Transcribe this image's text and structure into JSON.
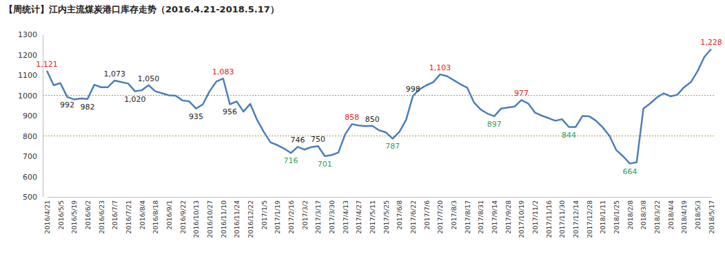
{
  "chart_data": {
    "type": "line",
    "title": "【周统计】江内主流煤炭港口库存走势（2016.4.21-2018.5.17）",
    "categories": [
      "2016/4/21",
      null,
      "2016/5/5",
      null,
      "2016/5/19",
      null,
      "2016/6/2",
      null,
      "2016/6/23",
      null,
      "2016/7/7",
      null,
      "2016/7/21",
      null,
      "2016/8/4",
      null,
      "2016/8/18",
      null,
      "2016/9/1",
      null,
      "2016/9/22",
      null,
      "2016/10/13",
      null,
      "2016/10/27",
      null,
      "2016/11/10",
      null,
      "2016/11/24",
      null,
      "2016/12/22",
      null,
      "2017/1/5",
      null,
      "2017/1/19",
      null,
      "2017/2/16",
      null,
      "2017/3/2",
      null,
      "2017/3/17",
      null,
      "2017/3/30",
      null,
      "2017/4/13",
      null,
      "2017/4/27",
      null,
      "2017/5/11",
      null,
      "2017/5/25",
      null,
      "2017/6/8",
      null,
      "2017/6/22",
      null,
      "2017/7/6",
      null,
      "2017/7/20",
      null,
      "2017/8/3",
      null,
      "2017/8/17",
      null,
      "2017/8/31",
      null,
      "2017/9/14",
      null,
      "2017/9/28",
      null,
      "2017/10/19",
      null,
      "2017/11/2",
      null,
      "2017/11/16",
      null,
      "2017/11/30",
      null,
      "2017/12/14",
      null,
      "2017/12/28",
      null,
      "2018/1/11",
      null,
      "2018/1/25",
      null,
      "2018/2/8",
      null,
      "2018/3/8",
      null,
      "2018/3/22",
      null,
      "2018/4/4",
      null,
      "2018/4/19",
      null,
      "2018/5/3",
      null,
      "2018/5/17"
    ],
    "values": [
      1121,
      1050,
      1060,
      992,
      980,
      985,
      982,
      1052,
      1040,
      1040,
      1073,
      1065,
      1058,
      1020,
      1025,
      1050,
      1020,
      1010,
      1000,
      998,
      975,
      970,
      935,
      955,
      1020,
      1068,
      1083,
      956,
      970,
      920,
      958,
      880,
      820,
      768,
      755,
      738,
      716,
      746,
      733,
      745,
      750,
      701,
      706,
      718,
      808,
      858,
      852,
      848,
      850,
      828,
      818,
      787,
      820,
      880,
      998,
      1030,
      1050,
      1065,
      1103,
      1095,
      1075,
      1055,
      1038,
      965,
      930,
      910,
      897,
      935,
      940,
      945,
      977,
      960,
      915,
      900,
      888,
      875,
      882,
      844,
      844,
      898,
      897,
      875,
      842,
      800,
      730,
      700,
      664,
      670,
      935,
      960,
      990,
      1010,
      995,
      1003,
      1040,
      1065,
      1120,
      1190,
      1228
    ],
    "color": "#4a7ebb",
    "ylim": [
      500,
      1300
    ],
    "yticks": [
      500,
      600,
      700,
      800,
      900,
      1000,
      1100,
      1200,
      1300
    ],
    "grid": false,
    "reference_lines": [
      800,
      1000
    ],
    "annotations": [
      {
        "index": 0,
        "text": "1,121",
        "color": "#e02020"
      },
      {
        "index": 3,
        "text": "992",
        "color": "#222222"
      },
      {
        "index": 6,
        "text": "982",
        "color": "#222222"
      },
      {
        "index": 10,
        "text": "1,073",
        "color": "#222222"
      },
      {
        "index": 13,
        "text": "1,020",
        "color": "#222222"
      },
      {
        "index": 15,
        "text": "1,050",
        "color": "#222222"
      },
      {
        "index": 22,
        "text": "935",
        "color": "#222222"
      },
      {
        "index": 26,
        "text": "1,083",
        "color": "#e02020"
      },
      {
        "index": 27,
        "text": "956",
        "color": "#222222"
      },
      {
        "index": 36,
        "text": "716",
        "color": "#2e9e5a"
      },
      {
        "index": 37,
        "text": "746",
        "color": "#222222"
      },
      {
        "index": 40,
        "text": "750",
        "color": "#222222"
      },
      {
        "index": 41,
        "text": "701",
        "color": "#2e9e5a"
      },
      {
        "index": 45,
        "text": "858",
        "color": "#e02020"
      },
      {
        "index": 48,
        "text": "850",
        "color": "#222222"
      },
      {
        "index": 51,
        "text": "787",
        "color": "#2e9e5a"
      },
      {
        "index": 54,
        "text": "998",
        "color": "#222222"
      },
      {
        "index": 58,
        "text": "1,103",
        "color": "#e02020"
      },
      {
        "index": 66,
        "text": "897",
        "color": "#2e9e5a"
      },
      {
        "index": 70,
        "text": "977",
        "color": "#e02020"
      },
      {
        "index": 77,
        "text": "844",
        "color": "#2e9e5a"
      },
      {
        "index": 86,
        "text": "664",
        "color": "#2e9e5a"
      },
      {
        "index": 98,
        "text": "1,228",
        "color": "#e02020"
      }
    ]
  }
}
